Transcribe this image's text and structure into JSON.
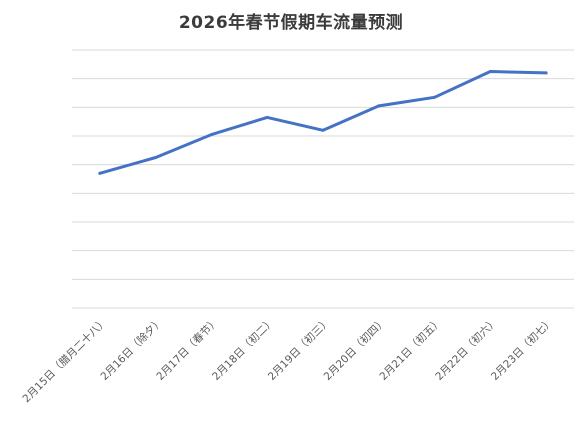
{
  "chart_data": {
    "type": "line",
    "title": "2026年春节假期车流量预测",
    "xlabel": "",
    "ylabel": "",
    "categories": [
      "2月15日（腊月二十八）",
      "2月16日（除夕）",
      "2月17日（春节）",
      "2月18日（初二）",
      "2月19日（初三）",
      "2月20日（初四）",
      "2月21日（初五）",
      "2月22日（初六）",
      "2月23日（初七）"
    ],
    "series": [
      {
        "values": [
          4.7,
          5.25,
          6.05,
          6.65,
          6.2,
          7.05,
          7.35,
          8.25,
          8.2
        ],
        "color": "#4472c4"
      }
    ],
    "ylim": [
      0,
      9
    ],
    "y_axis_labels_visible": false,
    "grid": true,
    "legend": "none"
  }
}
